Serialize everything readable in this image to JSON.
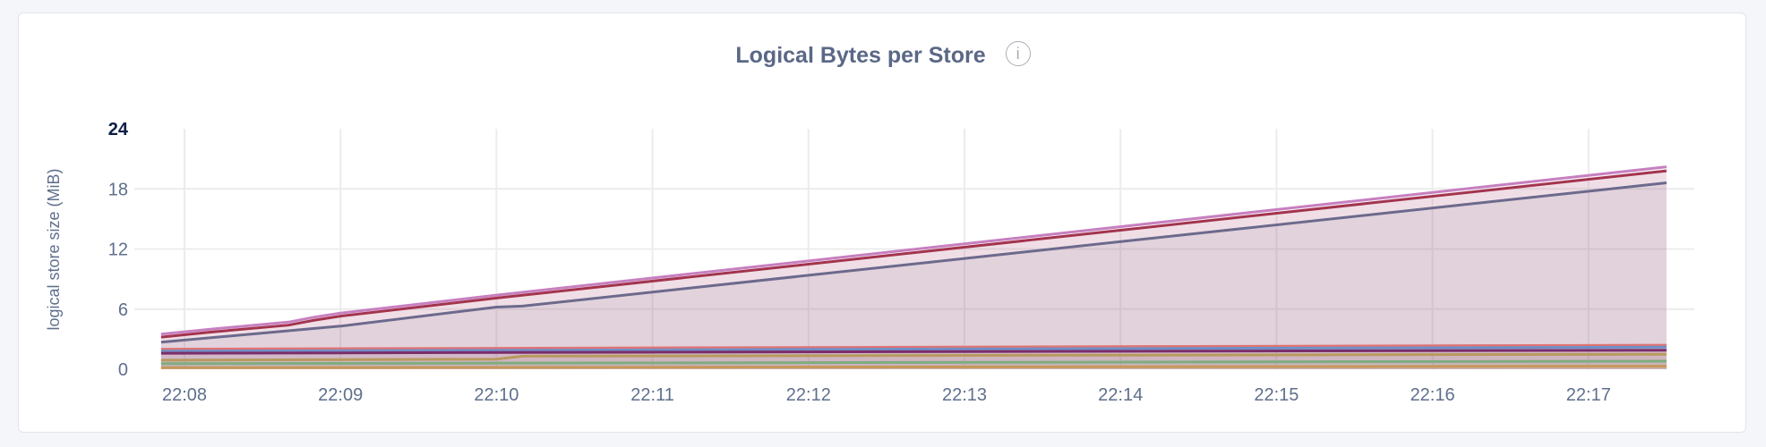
{
  "chart_data": {
    "type": "area",
    "title": "Logical Bytes per Store",
    "ylabel": "logical store size (MiB)",
    "xlabel": "",
    "ylim": [
      0,
      24
    ],
    "yticks": [
      "0",
      "6",
      "12",
      "18",
      "24"
    ],
    "xticks": [
      "22:08",
      "22:09",
      "22:10",
      "22:11",
      "22:12",
      "22:13",
      "22:14",
      "22:15",
      "22:16",
      "22:17"
    ],
    "grid": true,
    "legend": "none",
    "series": [
      {
        "color": "#c77fbf",
        "points": [
          [
            "22:07:51",
            3.5
          ],
          [
            "22:08:10",
            4.0
          ],
          [
            "22:08:40",
            4.7
          ],
          [
            "22:08:50",
            5.2
          ],
          [
            "22:09:00",
            5.6
          ],
          [
            "22:10:00",
            7.4
          ],
          [
            "22:17:30",
            20.2
          ]
        ]
      },
      {
        "color": "#a3344e",
        "points": [
          [
            "22:07:51",
            3.2
          ],
          [
            "22:08:10",
            3.7
          ],
          [
            "22:08:40",
            4.4
          ],
          [
            "22:08:50",
            4.9
          ],
          [
            "22:09:00",
            5.3
          ],
          [
            "22:10:00",
            7.1
          ],
          [
            "22:17:30",
            19.8
          ]
        ]
      },
      {
        "color": "#6c6a8c",
        "points": [
          [
            "22:07:51",
            2.7
          ],
          [
            "22:09:00",
            4.3
          ],
          [
            "22:10:00",
            6.2
          ],
          [
            "22:10:10",
            6.3
          ],
          [
            "22:17:30",
            18.6
          ]
        ]
      },
      {
        "color": "#e07474",
        "points": [
          [
            "22:07:51",
            2.0
          ],
          [
            "22:17:30",
            2.4
          ]
        ]
      },
      {
        "color": "#6f8fc7",
        "points": [
          [
            "22:07:51",
            1.8
          ],
          [
            "22:17:30",
            2.2
          ]
        ]
      },
      {
        "color": "#7b2d6a",
        "points": [
          [
            "22:07:51",
            1.6
          ],
          [
            "22:17:30",
            1.9
          ]
        ]
      },
      {
        "color": "#b89a5e",
        "points": [
          [
            "22:07:51",
            0.9
          ],
          [
            "22:10:00",
            1.0
          ],
          [
            "22:10:10",
            1.3
          ],
          [
            "22:17:30",
            1.5
          ]
        ]
      },
      {
        "color": "#7fac80",
        "points": [
          [
            "22:07:51",
            0.55
          ],
          [
            "22:17:30",
            0.8
          ]
        ]
      },
      {
        "color": "#c8985a",
        "points": [
          [
            "22:07:51",
            0.15
          ],
          [
            "22:17:30",
            0.3
          ]
        ]
      }
    ]
  },
  "info_icon": "info-icon"
}
